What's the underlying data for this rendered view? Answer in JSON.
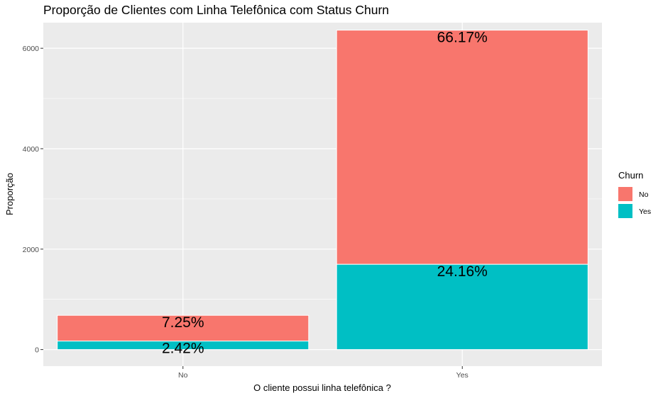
{
  "chart_data": {
    "type": "bar",
    "stacked": true,
    "title": "Proporção de Clientes com Linha Telefônica com Status Churn",
    "xlabel": "O cliente possui linha telefônica ?",
    "ylabel": "Proporção",
    "categories": [
      "No",
      "Yes"
    ],
    "series": [
      {
        "name": "No",
        "color": "#F8766D",
        "values": [
          512,
          4662
        ],
        "labels": [
          "7.25%",
          "66.17%"
        ]
      },
      {
        "name": "Yes",
        "color": "#00BFC4",
        "values": [
          170,
          1699
        ],
        "labels": [
          "2.42%",
          "24.16%"
        ]
      }
    ],
    "yticks": [
      0,
      2000,
      4000,
      6000
    ],
    "ytick_labels": [
      "0",
      "2000",
      "4000",
      "6000"
    ],
    "ylim": [
      -330,
      6510
    ],
    "grid": true,
    "legend": {
      "title": "Churn",
      "placement": "right"
    }
  }
}
